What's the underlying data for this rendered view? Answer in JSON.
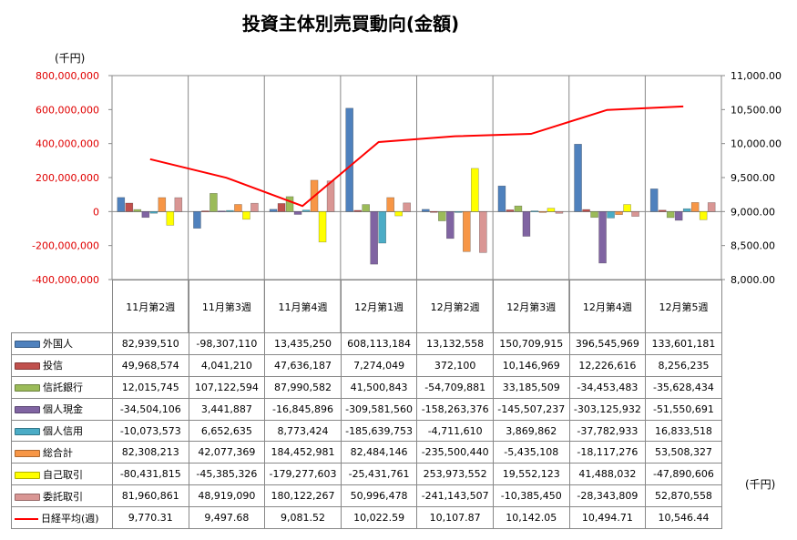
{
  "chart_data": {
    "type": "bar",
    "title": "投資主体別売買動向(金額)",
    "left_unit": "(千円)",
    "right_unit": "(千円)",
    "categories": [
      "11月第2週",
      "11月第3週",
      "11月第4週",
      "12月第1週",
      "12月第2週",
      "12月第3週",
      "12月第4週",
      "12月第5週"
    ],
    "ylim": [
      -400000000,
      800000000
    ],
    "y_ticks": [
      "800,000,000",
      "600,000,000",
      "400,000,000",
      "200,000,000",
      "0",
      "-200,000,000",
      "-400,000,000"
    ],
    "y2lim": [
      8000,
      11000
    ],
    "y2_ticks": [
      "11,000.00",
      "10,500.00",
      "10,000.00",
      "9,500.00",
      "9,000.00",
      "8,500.00",
      "8,000.00"
    ],
    "series": [
      {
        "name": "外国人",
        "color": "#4f81bd",
        "values": [
          82939510,
          -98307110,
          13435250,
          608113184,
          13132558,
          150709915,
          396545969,
          133601181
        ],
        "labels": [
          "82,939,510",
          "-98,307,110",
          "13,435,250",
          "608,113,184",
          "13,132,558",
          "150,709,915",
          "396,545,969",
          "133,601,181"
        ]
      },
      {
        "name": "投信",
        "color": "#c0504d",
        "values": [
          49968574,
          4041210,
          47636187,
          7274049,
          372100,
          10146969,
          12226616,
          8256235
        ],
        "labels": [
          "49,968,574",
          "4,041,210",
          "47,636,187",
          "7,274,049",
          "372,100",
          "10,146,969",
          "12,226,616",
          "8,256,235"
        ]
      },
      {
        "name": "信託銀行",
        "color": "#9bbb59",
        "values": [
          12015745,
          107122594,
          87990582,
          41500843,
          -54709881,
          33185509,
          -34453483,
          -35628434
        ],
        "labels": [
          "12,015,745",
          "107,122,594",
          "87,990,582",
          "41,500,843",
          "-54,709,881",
          "33,185,509",
          "-34,453,483",
          "-35,628,434"
        ]
      },
      {
        "name": "個人現金",
        "color": "#8064a2",
        "values": [
          -34504106,
          3441887,
          -16845896,
          -309581560,
          -158263376,
          -145507237,
          -303125932,
          -51550691
        ],
        "labels": [
          "-34,504,106",
          "3,441,887",
          "-16,845,896",
          "-309,581,560",
          "-158,263,376",
          "-145,507,237",
          "-303,125,932",
          "-51,550,691"
        ]
      },
      {
        "name": "個人信用",
        "color": "#4bacc6",
        "values": [
          -10073573,
          6652635,
          8773424,
          -185639753,
          -4711610,
          3869862,
          -37782933,
          16833518
        ],
        "labels": [
          "-10,073,573",
          "6,652,635",
          "8,773,424",
          "-185,639,753",
          "-4,711,610",
          "3,869,862",
          "-37,782,933",
          "16,833,518"
        ]
      },
      {
        "name": "総合計",
        "color": "#f79646",
        "values": [
          82308213,
          42077369,
          184452981,
          82484146,
          -235500440,
          -5435108,
          -18117276,
          53508327
        ],
        "labels": [
          "82,308,213",
          "42,077,369",
          "184,452,981",
          "82,484,146",
          "-235,500,440",
          "-5,435,108",
          "-18,117,276",
          "53,508,327"
        ]
      },
      {
        "name": "自己取引",
        "color": "#ffff00",
        "values": [
          -80431815,
          -45385326,
          -179277603,
          -25431761,
          253973552,
          19552123,
          41488032,
          -47890606
        ],
        "labels": [
          "-80,431,815",
          "-45,385,326",
          "-179,277,603",
          "-25,431,761",
          "253,973,552",
          "19,552,123",
          "41,488,032",
          "-47,890,606"
        ]
      },
      {
        "name": "委託取引",
        "color": "#d99694",
        "values": [
          81960861,
          48919090,
          180122267,
          50996478,
          -241143507,
          -10385450,
          -28343809,
          52870558
        ],
        "labels": [
          "81,960,861",
          "48,919,090",
          "180,122,267",
          "50,996,478",
          "-241,143,507",
          "-10,385,450",
          "-28,343,809",
          "52,870,558"
        ]
      }
    ],
    "line_series": {
      "name": "日経平均(週)",
      "color": "#ff0000",
      "axis": "right",
      "values": [
        9770.31,
        9497.68,
        9081.52,
        10022.59,
        10107.87,
        10142.05,
        10494.71,
        10546.44
      ],
      "labels": [
        "9,770.31",
        "9,497.68",
        "9,081.52",
        "10,022.59",
        "10,107.87",
        "10,142.05",
        "10,494.71",
        "10,546.44"
      ]
    }
  }
}
